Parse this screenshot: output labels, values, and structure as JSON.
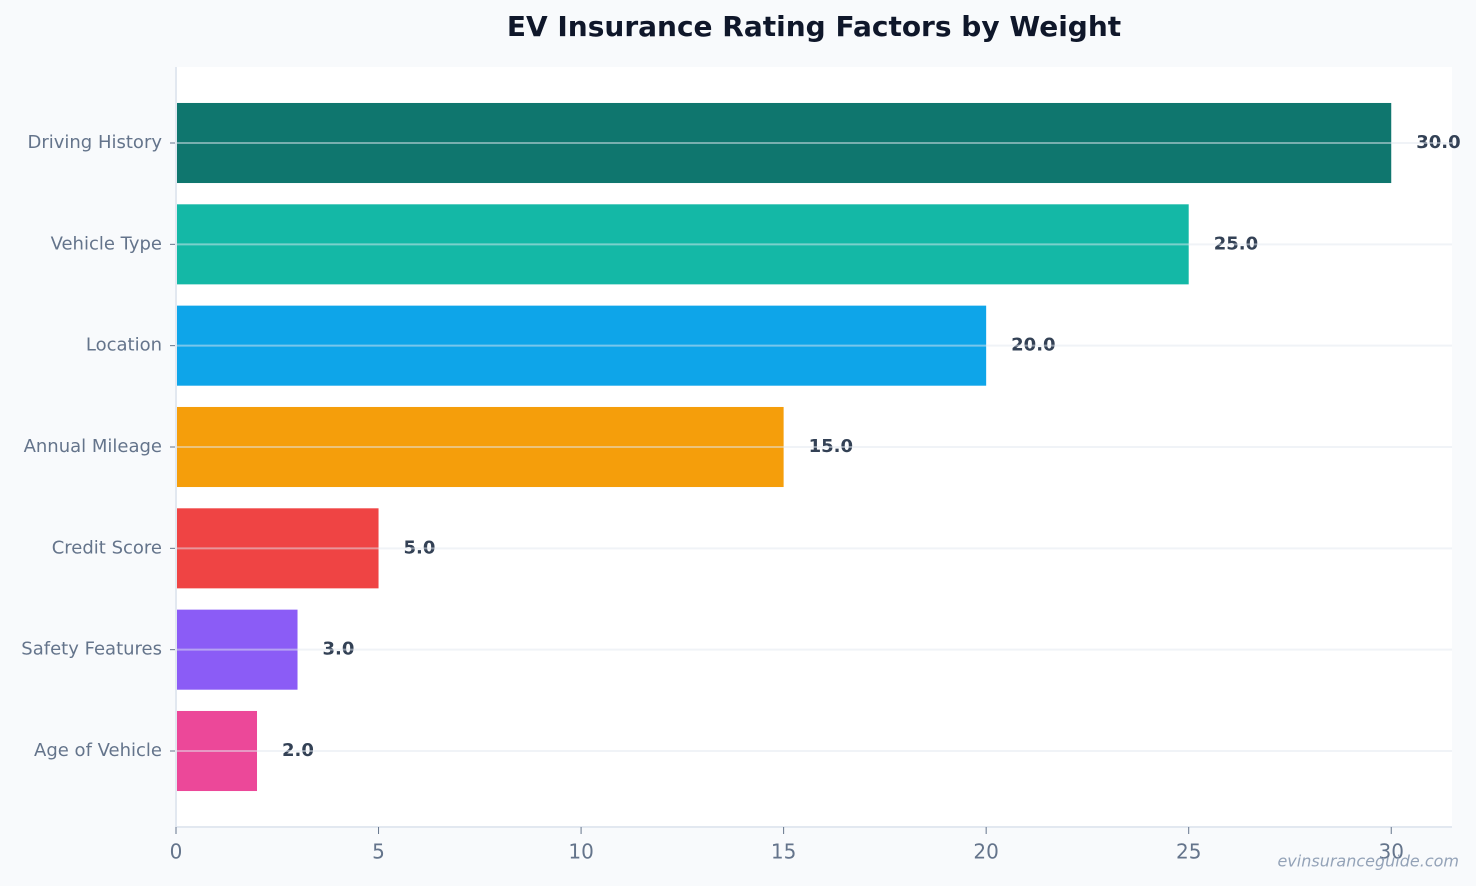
{
  "chart_data": {
    "type": "hbar",
    "title": "EV Insurance Rating Factors by Weight",
    "categories": [
      "Driving History",
      "Vehicle Type",
      "Location",
      "Annual Mileage",
      "Credit Score",
      "Safety Features",
      "Age of Vehicle"
    ],
    "values": [
      30,
      25,
      20,
      15,
      5,
      3,
      2
    ],
    "value_labels": [
      "30.0",
      "25.0",
      "20.0",
      "15.0",
      "5.0",
      "3.0",
      "2.0"
    ],
    "colors": [
      "#0f766e",
      "#14b8a6",
      "#0ea5e9",
      "#f59e0b",
      "#ef4444",
      "#8b5cf6",
      "#ec4899"
    ],
    "xlim": [
      0,
      31.5
    ],
    "xticks": [
      0,
      5,
      10,
      15,
      20,
      25,
      30
    ],
    "grid": true,
    "watermark": "evinsuranceguide.com"
  }
}
